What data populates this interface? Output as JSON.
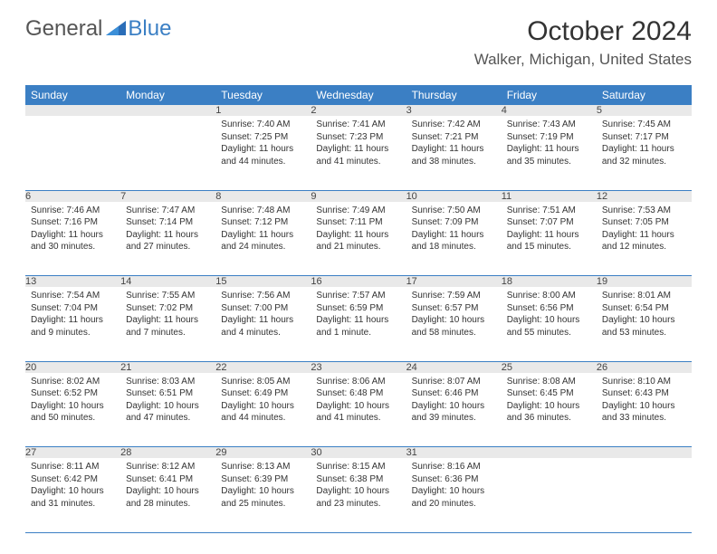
{
  "brand": {
    "general": "General",
    "blue": "Blue"
  },
  "title": "October 2024",
  "location": "Walker, Michigan, United States",
  "colors": {
    "header_bg": "#3b7fc4",
    "header_fg": "#ffffff",
    "daynum_bg": "#e9e9e9",
    "rule": "#3b7fc4",
    "text": "#333333"
  },
  "fonts": {
    "title_size": 30,
    "location_size": 17,
    "header_size": 12,
    "daynum_size": 11,
    "body_size": 10
  },
  "weekdays": [
    "Sunday",
    "Monday",
    "Tuesday",
    "Wednesday",
    "Thursday",
    "Friday",
    "Saturday"
  ],
  "weeks": [
    [
      null,
      null,
      {
        "n": "1",
        "sunrise": "7:40 AM",
        "sunset": "7:25 PM",
        "daylight": "11 hours and 44 minutes."
      },
      {
        "n": "2",
        "sunrise": "7:41 AM",
        "sunset": "7:23 PM",
        "daylight": "11 hours and 41 minutes."
      },
      {
        "n": "3",
        "sunrise": "7:42 AM",
        "sunset": "7:21 PM",
        "daylight": "11 hours and 38 minutes."
      },
      {
        "n": "4",
        "sunrise": "7:43 AM",
        "sunset": "7:19 PM",
        "daylight": "11 hours and 35 minutes."
      },
      {
        "n": "5",
        "sunrise": "7:45 AM",
        "sunset": "7:17 PM",
        "daylight": "11 hours and 32 minutes."
      }
    ],
    [
      {
        "n": "6",
        "sunrise": "7:46 AM",
        "sunset": "7:16 PM",
        "daylight": "11 hours and 30 minutes."
      },
      {
        "n": "7",
        "sunrise": "7:47 AM",
        "sunset": "7:14 PM",
        "daylight": "11 hours and 27 minutes."
      },
      {
        "n": "8",
        "sunrise": "7:48 AM",
        "sunset": "7:12 PM",
        "daylight": "11 hours and 24 minutes."
      },
      {
        "n": "9",
        "sunrise": "7:49 AM",
        "sunset": "7:11 PM",
        "daylight": "11 hours and 21 minutes."
      },
      {
        "n": "10",
        "sunrise": "7:50 AM",
        "sunset": "7:09 PM",
        "daylight": "11 hours and 18 minutes."
      },
      {
        "n": "11",
        "sunrise": "7:51 AM",
        "sunset": "7:07 PM",
        "daylight": "11 hours and 15 minutes."
      },
      {
        "n": "12",
        "sunrise": "7:53 AM",
        "sunset": "7:05 PM",
        "daylight": "11 hours and 12 minutes."
      }
    ],
    [
      {
        "n": "13",
        "sunrise": "7:54 AM",
        "sunset": "7:04 PM",
        "daylight": "11 hours and 9 minutes."
      },
      {
        "n": "14",
        "sunrise": "7:55 AM",
        "sunset": "7:02 PM",
        "daylight": "11 hours and 7 minutes."
      },
      {
        "n": "15",
        "sunrise": "7:56 AM",
        "sunset": "7:00 PM",
        "daylight": "11 hours and 4 minutes."
      },
      {
        "n": "16",
        "sunrise": "7:57 AM",
        "sunset": "6:59 PM",
        "daylight": "11 hours and 1 minute."
      },
      {
        "n": "17",
        "sunrise": "7:59 AM",
        "sunset": "6:57 PM",
        "daylight": "10 hours and 58 minutes."
      },
      {
        "n": "18",
        "sunrise": "8:00 AM",
        "sunset": "6:56 PM",
        "daylight": "10 hours and 55 minutes."
      },
      {
        "n": "19",
        "sunrise": "8:01 AM",
        "sunset": "6:54 PM",
        "daylight": "10 hours and 53 minutes."
      }
    ],
    [
      {
        "n": "20",
        "sunrise": "8:02 AM",
        "sunset": "6:52 PM",
        "daylight": "10 hours and 50 minutes."
      },
      {
        "n": "21",
        "sunrise": "8:03 AM",
        "sunset": "6:51 PM",
        "daylight": "10 hours and 47 minutes."
      },
      {
        "n": "22",
        "sunrise": "8:05 AM",
        "sunset": "6:49 PM",
        "daylight": "10 hours and 44 minutes."
      },
      {
        "n": "23",
        "sunrise": "8:06 AM",
        "sunset": "6:48 PM",
        "daylight": "10 hours and 41 minutes."
      },
      {
        "n": "24",
        "sunrise": "8:07 AM",
        "sunset": "6:46 PM",
        "daylight": "10 hours and 39 minutes."
      },
      {
        "n": "25",
        "sunrise": "8:08 AM",
        "sunset": "6:45 PM",
        "daylight": "10 hours and 36 minutes."
      },
      {
        "n": "26",
        "sunrise": "8:10 AM",
        "sunset": "6:43 PM",
        "daylight": "10 hours and 33 minutes."
      }
    ],
    [
      {
        "n": "27",
        "sunrise": "8:11 AM",
        "sunset": "6:42 PM",
        "daylight": "10 hours and 31 minutes."
      },
      {
        "n": "28",
        "sunrise": "8:12 AM",
        "sunset": "6:41 PM",
        "daylight": "10 hours and 28 minutes."
      },
      {
        "n": "29",
        "sunrise": "8:13 AM",
        "sunset": "6:39 PM",
        "daylight": "10 hours and 25 minutes."
      },
      {
        "n": "30",
        "sunrise": "8:15 AM",
        "sunset": "6:38 PM",
        "daylight": "10 hours and 23 minutes."
      },
      {
        "n": "31",
        "sunrise": "8:16 AM",
        "sunset": "6:36 PM",
        "daylight": "10 hours and 20 minutes."
      },
      null,
      null
    ]
  ]
}
